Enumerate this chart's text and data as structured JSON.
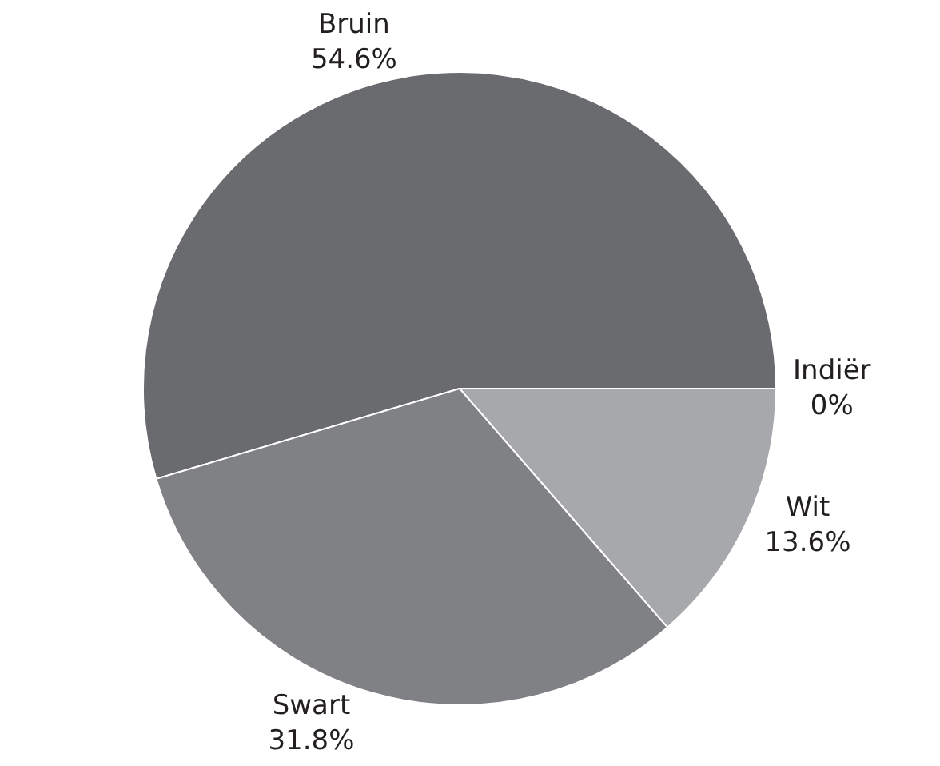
{
  "chart_data": {
    "type": "pie",
    "categories": [
      "Wit",
      "Indiër",
      "Bruin",
      "Swart"
    ],
    "values": [
      13.6,
      0,
      54.6,
      31.8
    ],
    "value_labels": [
      "13.6%",
      "0%",
      "54.6%",
      "31.8%"
    ],
    "colors": [
      "#a7a8ab",
      "#c8c9cb",
      "#6a6b6f",
      "#808184"
    ],
    "legend": false
  }
}
